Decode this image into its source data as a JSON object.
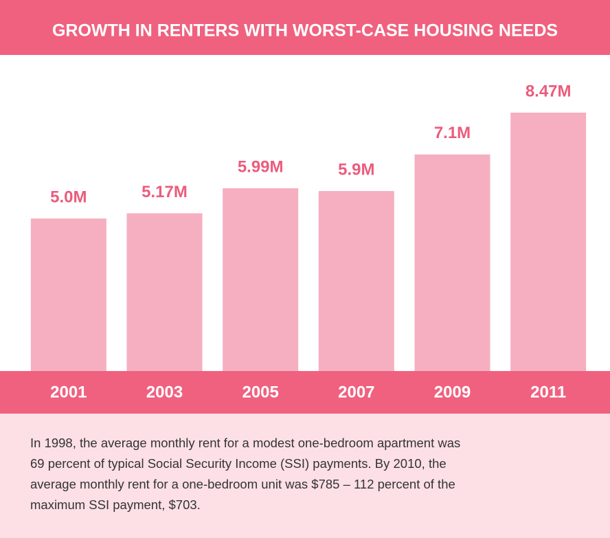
{
  "chart_data": {
    "type": "bar",
    "title": "GROWTH IN RENTERS WITH WORST-CASE HOUSING NEEDS",
    "categories": [
      "2001",
      "2003",
      "2005",
      "2007",
      "2009",
      "2011"
    ],
    "values": [
      5.0,
      5.17,
      5.99,
      5.9,
      7.1,
      8.47
    ],
    "value_labels": [
      "5.0M",
      "5.17M",
      "5.99M",
      "5.9M",
      "7.1M",
      "8.47M"
    ],
    "color": "#f6afc0",
    "label_color": "#ec5b7c",
    "band_color": "#f0617f",
    "ylim": [
      0,
      10
    ],
    "note": [
      "In 1998, the average monthly rent for a modest one-bedroom apartment was",
      "69 percent of typical Social Security Income (SSI) payments. By 2010, the",
      "average monthly rent for a one-bedroom unit was $785 – 112 percent of the",
      "maximum SSI payment, $703."
    ]
  }
}
